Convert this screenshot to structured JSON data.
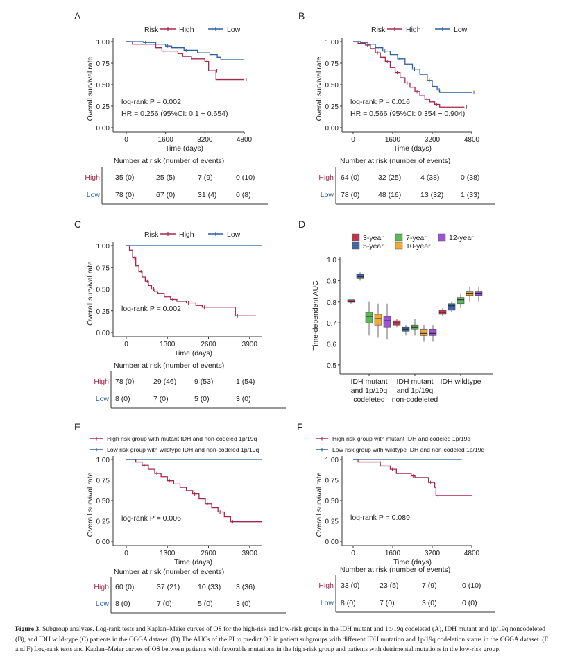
{
  "colors": {
    "high": "#a5284a",
    "low": "#2c5f9e",
    "axis": "#333333",
    "box1": "#c0364f",
    "box2": "#3e6aa8",
    "box3": "#5bb85a",
    "box4": "#f1a93b",
    "box5": "#9b54d6"
  },
  "chart_data": [
    {
      "panel": "A",
      "type": "line",
      "ylabel": "Overall survival rate",
      "xlabel": "Time (days)",
      "legend_title": "Risk",
      "legend_items": [
        "High",
        "Low"
      ],
      "xticks": [
        "0",
        "1600",
        "3200",
        "4800"
      ],
      "xlim": [
        0,
        4800
      ],
      "yticks": [
        "0.00",
        "0.25",
        "0.50",
        "0.75",
        "1.00"
      ],
      "ylim": [
        0,
        1
      ],
      "annotations": [
        "log-rank P = 0.002",
        "HR = 0.256 (95%CI: 0.1 − 0.654)"
      ],
      "series": [
        {
          "name": "High",
          "steps": [
            [
              0,
              1
            ],
            [
              250,
              0.97
            ],
            [
              1100,
              0.97
            ],
            [
              1200,
              0.93
            ],
            [
              1450,
              0.89
            ],
            [
              2100,
              0.86
            ],
            [
              2300,
              0.83
            ],
            [
              2650,
              0.8
            ],
            [
              3200,
              0.77
            ],
            [
              3350,
              0.66
            ],
            [
              3600,
              0.66
            ],
            [
              3650,
              0.56
            ],
            [
              4800,
              0.56
            ]
          ]
        },
        {
          "name": "Low",
          "steps": [
            [
              0,
              1
            ],
            [
              650,
              1
            ],
            [
              700,
              0.99
            ],
            [
              1200,
              0.97
            ],
            [
              1600,
              0.95
            ],
            [
              1850,
              0.93
            ],
            [
              2350,
              0.9
            ],
            [
              2900,
              0.87
            ],
            [
              3400,
              0.85
            ],
            [
              3700,
              0.82
            ],
            [
              3850,
              0.79
            ],
            [
              4800,
              0.79
            ]
          ]
        }
      ],
      "risk_table": {
        "title": "Number at risk (number of events)",
        "rows": [
          {
            "group": "High",
            "cells": [
              "35 (0)",
              "25 (5)",
              "7 (9)",
              "0 (10)"
            ]
          },
          {
            "group": "Low",
            "cells": [
              "78 (0)",
              "67 (0)",
              "31 (4)",
              "0 (8)"
            ]
          }
        ]
      }
    },
    {
      "panel": "B",
      "type": "line",
      "ylabel": "Overall survival rate",
      "xlabel": "Time (days)",
      "legend_title": "Risk",
      "legend_items": [
        "High",
        "Low"
      ],
      "xticks": [
        "0",
        "1600",
        "3200",
        "4800"
      ],
      "xlim": [
        0,
        4800
      ],
      "yticks": [
        "0.00",
        "0.25",
        "0.50",
        "0.75",
        "1.00"
      ],
      "ylim": [
        0,
        1
      ],
      "annotations": [
        "log-rank P = 0.016",
        "HR = 0.566 (95%CI: 0.354 − 0.904)"
      ],
      "series": [
        {
          "name": "High",
          "steps": [
            [
              0,
              1
            ],
            [
              200,
              0.98
            ],
            [
              500,
              0.96
            ],
            [
              700,
              0.92
            ],
            [
              900,
              0.87
            ],
            [
              1100,
              0.82
            ],
            [
              1300,
              0.77
            ],
            [
              1500,
              0.7
            ],
            [
              1700,
              0.64
            ],
            [
              1900,
              0.58
            ],
            [
              2100,
              0.52
            ],
            [
              2300,
              0.47
            ],
            [
              2500,
              0.42
            ],
            [
              2700,
              0.37
            ],
            [
              2900,
              0.33
            ],
            [
              3100,
              0.3
            ],
            [
              3300,
              0.27
            ],
            [
              3500,
              0.24
            ],
            [
              4500,
              0.24
            ]
          ]
        },
        {
          "name": "Low",
          "steps": [
            [
              0,
              1
            ],
            [
              300,
              0.99
            ],
            [
              600,
              0.97
            ],
            [
              900,
              0.93
            ],
            [
              1200,
              0.89
            ],
            [
              1500,
              0.85
            ],
            [
              1800,
              0.8
            ],
            [
              2100,
              0.74
            ],
            [
              2400,
              0.68
            ],
            [
              2700,
              0.62
            ],
            [
              3000,
              0.55
            ],
            [
              3200,
              0.48
            ],
            [
              3400,
              0.44
            ],
            [
              3500,
              0.41
            ],
            [
              4800,
              0.41
            ]
          ]
        }
      ],
      "risk_table": {
        "title": "Number at risk (number of events)",
        "rows": [
          {
            "group": "High",
            "cells": [
              "64 (0)",
              "32 (25)",
              "4 (38)",
              "0 (38)"
            ]
          },
          {
            "group": "Low",
            "cells": [
              "78 (0)",
              "48 (16)",
              "13 (32)",
              "1 (33)"
            ]
          }
        ]
      }
    },
    {
      "panel": "C",
      "type": "line",
      "ylabel": "Overall survival rate",
      "xlabel": "Time (days)",
      "legend_title": "Risk",
      "legend_items": [
        "High",
        "Low"
      ],
      "xticks": [
        "0",
        "1300",
        "2600",
        "3900"
      ],
      "xlim": [
        0,
        4300
      ],
      "yticks": [
        "0.00",
        "0.25",
        "0.50",
        "0.75",
        "1.00"
      ],
      "ylim": [
        0,
        1
      ],
      "annotations": [
        "log-rank P = 0.002"
      ],
      "series": [
        {
          "name": "High",
          "steps": [
            [
              0,
              1
            ],
            [
              100,
              0.95
            ],
            [
              200,
              0.86
            ],
            [
              300,
              0.77
            ],
            [
              400,
              0.7
            ],
            [
              500,
              0.64
            ],
            [
              600,
              0.59
            ],
            [
              700,
              0.54
            ],
            [
              800,
              0.5
            ],
            [
              900,
              0.47
            ],
            [
              1000,
              0.45
            ],
            [
              1200,
              0.41
            ],
            [
              1400,
              0.38
            ],
            [
              1600,
              0.36
            ],
            [
              1900,
              0.34
            ],
            [
              2200,
              0.31
            ],
            [
              2400,
              0.29
            ],
            [
              3400,
              0.29
            ],
            [
              3450,
              0.19
            ],
            [
              4100,
              0.19
            ]
          ]
        },
        {
          "name": "Low",
          "steps": [
            [
              0,
              1
            ],
            [
              4300,
              1
            ]
          ]
        }
      ],
      "risk_table": {
        "title": "Number at risk (number of events)",
        "rows": [
          {
            "group": "High",
            "cells": [
              "78 (0)",
              "29 (46)",
              "9 (53)",
              "1 (54)"
            ]
          },
          {
            "group": "Low",
            "cells": [
              "8 (0)",
              "7 (0)",
              "5 (0)",
              "3 (0)"
            ]
          }
        ]
      }
    },
    {
      "panel": "D",
      "type": "box",
      "ylabel": "Time-dependent AUC",
      "legend_items": [
        "3-year",
        "5-year",
        "7-year",
        "10-year",
        "12-year"
      ],
      "yticks": [
        "0.5",
        "0.6",
        "0.7",
        "0.8",
        "0.9",
        "1.0"
      ],
      "ylim": [
        0.47,
        1.0
      ],
      "categories": [
        [
          "IDH mutant",
          "and 1p/19q",
          "codeleted"
        ],
        [
          "IDH mutant",
          "and 1p/19q",
          "non-codeleted"
        ],
        [
          "IDH wildtype"
        ]
      ],
      "series": [
        {
          "name": "3-year",
          "values": [
            [
              0.79,
              0.8,
              0.8,
              0.81,
              0.81
            ],
            [
              0.68,
              0.69,
              0.7,
              0.71,
              0.72
            ],
            [
              0.73,
              0.74,
              0.75,
              0.76,
              0.77
            ]
          ]
        },
        {
          "name": "5-year",
          "values": [
            [
              0.9,
              0.91,
              0.92,
              0.93,
              0.94
            ],
            [
              0.64,
              0.66,
              0.67,
              0.68,
              0.69
            ],
            [
              0.75,
              0.76,
              0.78,
              0.79,
              0.8
            ]
          ]
        },
        {
          "name": "7-year",
          "values": [
            [
              0.64,
              0.7,
              0.73,
              0.75,
              0.8
            ],
            [
              0.64,
              0.67,
              0.68,
              0.69,
              0.72
            ],
            [
              0.77,
              0.79,
              0.81,
              0.82,
              0.84
            ]
          ]
        },
        {
          "name": "10-year",
          "values": [
            [
              0.63,
              0.69,
              0.72,
              0.74,
              0.79
            ],
            [
              0.61,
              0.64,
              0.65,
              0.67,
              0.69
            ],
            [
              0.8,
              0.83,
              0.84,
              0.85,
              0.87
            ]
          ]
        },
        {
          "name": "12-year",
          "values": [
            [
              0.62,
              0.68,
              0.71,
              0.73,
              0.79
            ],
            [
              0.61,
              0.64,
              0.65,
              0.67,
              0.69
            ],
            [
              0.8,
              0.83,
              0.84,
              0.85,
              0.87
            ]
          ]
        }
      ]
    },
    {
      "panel": "E",
      "type": "line",
      "ylabel": "Overall survival rate",
      "xlabel": "Time (days)",
      "legend_items": [
        "High risk group with mutant IDH and non-codeled 1p/19q",
        "Low risk group with wildtype IDH and non-codeled 1p/19q"
      ],
      "xticks": [
        "0",
        "1300",
        "2600",
        "3900"
      ],
      "xlim": [
        0,
        4300
      ],
      "yticks": [
        "0.00",
        "0.25",
        "0.50",
        "0.75",
        "1.00"
      ],
      "ylim": [
        0,
        1
      ],
      "annotations": [
        "log-rank P = 0.006"
      ],
      "series": [
        {
          "name": "High risk group with mutant IDH and non-codeled 1p/19q",
          "steps": [
            [
              0,
              1
            ],
            [
              300,
              0.97
            ],
            [
              500,
              0.93
            ],
            [
              700,
              0.88
            ],
            [
              900,
              0.83
            ],
            [
              1100,
              0.79
            ],
            [
              1300,
              0.74
            ],
            [
              1500,
              0.7
            ],
            [
              1700,
              0.66
            ],
            [
              1900,
              0.62
            ],
            [
              2100,
              0.58
            ],
            [
              2300,
              0.52
            ],
            [
              2500,
              0.46
            ],
            [
              2700,
              0.41
            ],
            [
              2900,
              0.36
            ],
            [
              3100,
              0.3
            ],
            [
              3300,
              0.24
            ],
            [
              4300,
              0.24
            ]
          ]
        },
        {
          "name": "Low risk group with wildtype IDH and non-codeled 1p/19q",
          "steps": [
            [
              0,
              1
            ],
            [
              4300,
              1
            ]
          ]
        }
      ],
      "risk_table": {
        "title": "Number at risk (number of events)",
        "rows": [
          {
            "group": "High",
            "cells": [
              "60 (0)",
              "37 (21)",
              "10 (33)",
              "3 (36)"
            ]
          },
          {
            "group": "Low",
            "cells": [
              "8 (0)",
              "7 (0)",
              "5 (0)",
              "3 (0)"
            ]
          }
        ]
      }
    },
    {
      "panel": "F",
      "type": "line",
      "ylabel": "Overall survival rate",
      "xlabel": "Time (days)",
      "legend_items": [
        "High risk group with mutant IDH and codeled 1p/19q",
        "Low risk group with wildtype IDH and non-codeled 1p/19q"
      ],
      "xticks": [
        "0",
        "1600",
        "3200",
        "4800"
      ],
      "xlim": [
        0,
        4800
      ],
      "yticks": [
        "0.00",
        "0.25",
        "0.50",
        "0.75",
        "1.00"
      ],
      "ylim": [
        0,
        1
      ],
      "annotations": [
        "log-rank P = 0.089"
      ],
      "series": [
        {
          "name": "High risk group with mutant IDH and codeled 1p/19q",
          "steps": [
            [
              0,
              1
            ],
            [
              200,
              0.97
            ],
            [
              1000,
              0.97
            ],
            [
              1100,
              0.92
            ],
            [
              1500,
              0.88
            ],
            [
              1750,
              0.83
            ],
            [
              2350,
              0.8
            ],
            [
              2500,
              0.78
            ],
            [
              3050,
              0.72
            ],
            [
              3300,
              0.66
            ],
            [
              3350,
              0.56
            ],
            [
              4800,
              0.56
            ]
          ]
        },
        {
          "name": "Low risk group with wildtype IDH and non-codeled 1p/19q",
          "steps": [
            [
              0,
              1
            ],
            [
              4400,
              1
            ]
          ]
        }
      ],
      "risk_table": {
        "title": "Number at risk (number of events)",
        "rows": [
          {
            "group": "High",
            "cells": [
              "33 (0)",
              "23 (5)",
              "7 (9)",
              "0 (10)"
            ]
          },
          {
            "group": "Low",
            "cells": [
              "8 (0)",
              "7 (0)",
              "3 (0)",
              "0 (0)"
            ]
          }
        ]
      }
    }
  ],
  "caption": {
    "label": "Figure 3.",
    "text": "Subgroup analyses. Log-rank tests and Kaplan–Meier curves of OS for the high-risk and low-risk groups in the IDH mutant and 1p/19q codeleted (A), IDH mutant and 1p/19q noncodeleted (B), and IDH wild-type (C) patients in the CGGA dataset. (D) The AUCs of the PI to predict OS in patient subgroups with different IDH mutation and 1p/19q codeletion status in the CGGA dataset. (E and F) Log-rank tests and Kaplan–Meier curves of OS between patients with favorable mutations in the high-risk group and patients with detrimental mutations in the low-risk group."
  }
}
